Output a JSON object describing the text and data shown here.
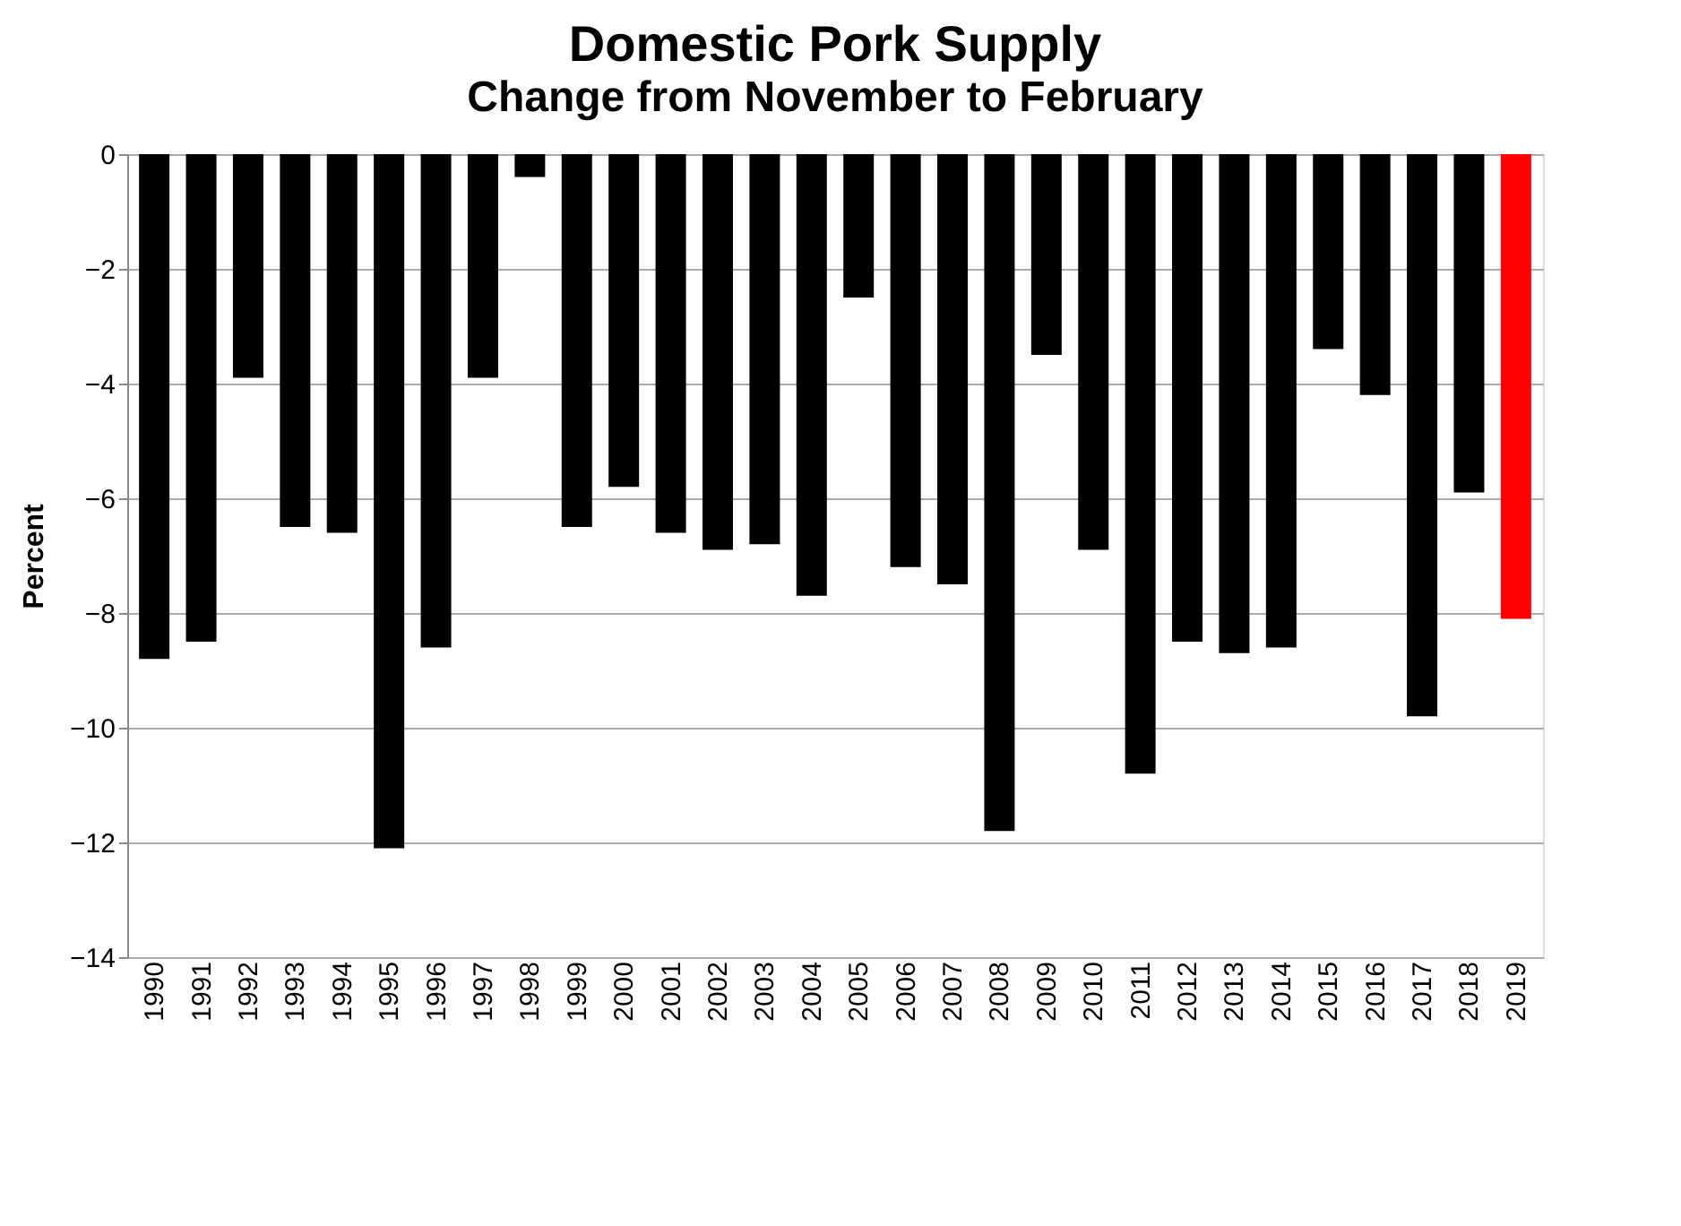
{
  "chart_data": {
    "type": "bar",
    "title": "Domestic Pork Supply",
    "subtitle": "Change from November to February",
    "ylabel": "Percent",
    "categories": [
      "1990",
      "1991",
      "1992",
      "1993",
      "1994",
      "1995",
      "1996",
      "1997",
      "1998",
      "1999",
      "2000",
      "2001",
      "2002",
      "2003",
      "2004",
      "2005",
      "2006",
      "2007",
      "2008",
      "2009",
      "2010",
      "2011",
      "2012",
      "2013",
      "2014",
      "2015",
      "2016",
      "2017",
      "2018",
      "2019"
    ],
    "values": [
      -8.8,
      -8.5,
      -3.9,
      -6.5,
      -6.6,
      -12.1,
      -8.6,
      -3.9,
      -0.4,
      -6.5,
      -5.8,
      -6.6,
      -6.9,
      -6.8,
      -7.7,
      -2.5,
      -7.2,
      -7.5,
      -11.8,
      -3.5,
      -6.9,
      -10.8,
      -8.5,
      -8.7,
      -8.6,
      -3.4,
      -4.2,
      -9.8,
      -5.9,
      -8.1
    ],
    "colors": [
      "#000000",
      "#000000",
      "#000000",
      "#000000",
      "#000000",
      "#000000",
      "#000000",
      "#000000",
      "#000000",
      "#000000",
      "#000000",
      "#000000",
      "#000000",
      "#000000",
      "#000000",
      "#000000",
      "#000000",
      "#000000",
      "#000000",
      "#000000",
      "#000000",
      "#000000",
      "#000000",
      "#000000",
      "#000000",
      "#000000",
      "#000000",
      "#000000",
      "#000000",
      "#ff0000"
    ],
    "ylim": [
      -14,
      0
    ],
    "yticks": [
      -14,
      -12,
      -10,
      -8,
      -6,
      -4,
      -2,
      0
    ],
    "grid": "y",
    "legend": false
  }
}
